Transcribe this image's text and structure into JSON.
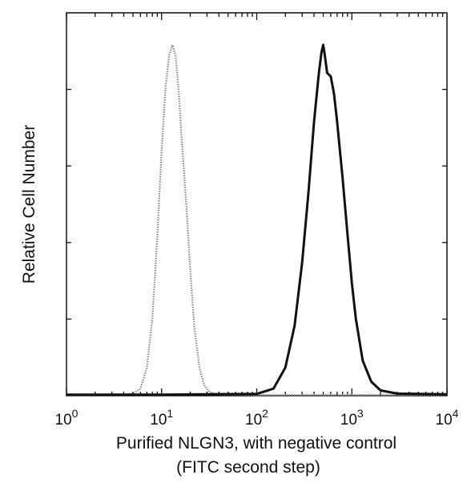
{
  "chart_data": {
    "type": "line",
    "title": "",
    "xlabel": "Purified NLGN3, with negative control",
    "xlabel_line2": "(FITC second step)",
    "ylabel": "Relative Cell Number",
    "x_scale": "log",
    "xlim": [
      1,
      10000
    ],
    "ylim": [
      0,
      100
    ],
    "x_ticks": [
      {
        "value": 1,
        "base": "10",
        "exp": "0"
      },
      {
        "value": 10,
        "base": "10",
        "exp": "1"
      },
      {
        "value": 100,
        "base": "10",
        "exp": "2"
      },
      {
        "value": 1000,
        "base": "10",
        "exp": "3"
      },
      {
        "value": 10000,
        "base": "10",
        "exp": "4"
      }
    ],
    "grid": false,
    "legend": "none",
    "series": [
      {
        "style": "dotted",
        "color": "#8a8a8a",
        "x": [
          1,
          5,
          6,
          7,
          8,
          9,
          10,
          11,
          12,
          13,
          14,
          15,
          16,
          18,
          20,
          22,
          25,
          28,
          32,
          40,
          100,
          1000,
          10000
        ],
        "y": [
          0,
          0.5,
          2,
          8,
          22,
          45,
          70,
          88,
          97,
          100,
          97,
          88,
          76,
          56,
          36,
          20,
          8,
          3,
          1,
          0.3,
          0.2,
          0.2,
          0.2
        ]
      },
      {
        "style": "solid",
        "color": "#111111",
        "x": [
          1,
          10,
          100,
          150,
          200,
          250,
          300,
          350,
          400,
          450,
          480,
          500,
          520,
          550,
          600,
          650,
          700,
          800,
          900,
          1000,
          1100,
          1300,
          1600,
          2000,
          3000,
          10000
        ],
        "y": [
          0.3,
          0.3,
          0.5,
          2,
          8,
          20,
          38,
          58,
          78,
          92,
          98,
          100,
          97,
          92,
          91,
          86,
          78,
          62,
          46,
          32,
          22,
          10,
          4,
          1.5,
          0.6,
          0.4
        ]
      }
    ]
  }
}
